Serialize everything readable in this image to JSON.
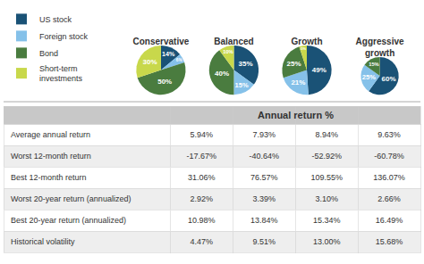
{
  "chart_data": [
    {
      "type": "pie",
      "title": "Conservative",
      "categories": [
        "US stock",
        "Foreign stock",
        "Bond",
        "Short-term\ninvestments"
      ],
      "values": [
        14,
        6,
        50,
        30
      ],
      "value_labels": [
        "14%",
        "6%",
        "50%",
        "30%"
      ],
      "colors": [
        "#1a5276",
        "#85c1e9",
        "#4a7c3f",
        "#c8d84b"
      ],
      "legend": "upper left"
    },
    {
      "type": "pie",
      "title": "Balanced",
      "categories": [
        "US stock",
        "Foreign stock",
        "Bond",
        "Short-term\ninvestments"
      ],
      "values": [
        35,
        15,
        40,
        10
      ],
      "value_labels": [
        "35%",
        "15%",
        "40%",
        "10%"
      ],
      "colors": [
        "#1a5276",
        "#85c1e9",
        "#4a7c3f",
        "#c8d84b"
      ]
    },
    {
      "type": "pie",
      "title": "Growth",
      "categories": [
        "US stock",
        "Foreign stock",
        "Bond",
        "Short-term\ninvestments"
      ],
      "values": [
        49,
        21,
        25,
        5
      ],
      "value_labels": [
        "49%",
        "21%",
        "25%",
        "5%"
      ],
      "colors": [
        "#1a5276",
        "#85c1e9",
        "#4a7c3f",
        "#c8d84b"
      ]
    },
    {
      "type": "pie",
      "title": "Aggressive\ngrowth",
      "categories": [
        "US stock",
        "Foreign stock",
        "Bond"
      ],
      "values": [
        60,
        25,
        15
      ],
      "value_labels": [
        "60%",
        "25%",
        "15%"
      ],
      "colors": [
        "#1a5276",
        "#85c1e9",
        "#4a7c3f"
      ]
    },
    {
      "type": "table",
      "title": "Annual return %",
      "categories": [
        "Average annual return",
        "Worst 12-month return",
        "Best 12-month return",
        "Worst 20-year return (annualized)",
        "Best 20-year return (annualized)",
        "Historical volatility"
      ],
      "values": [
        [
          5.94,
          7.93,
          8.94,
          9.63
        ],
        [
          -17.67,
          -40.64,
          -52.92,
          -60.78
        ],
        [
          31.06,
          76.57,
          109.55,
          136.07
        ],
        [
          2.92,
          3.39,
          3.1,
          2.66
        ],
        [
          10.98,
          13.84,
          15.34,
          16.49
        ],
        [
          4.47,
          9.51,
          13.0,
          15.68
        ]
      ],
      "value_labels": [
        [
          "5.94%",
          "7.93%",
          "8.94%",
          "9.63%"
        ],
        [
          "-17.67%",
          "-40.64%",
          "-52.92%",
          "-60.78%"
        ],
        [
          "31.06%",
          "76.57%",
          "109.55%",
          "136.07%"
        ],
        [
          "2.92%",
          "3.39%",
          "3.10%",
          "2.66%"
        ],
        [
          "10.98%",
          "13.84%",
          "15.34%",
          "16.49%"
        ],
        [
          "4.47%",
          "9.51%",
          "13.00%",
          "15.68%"
        ]
      ]
    }
  ]
}
